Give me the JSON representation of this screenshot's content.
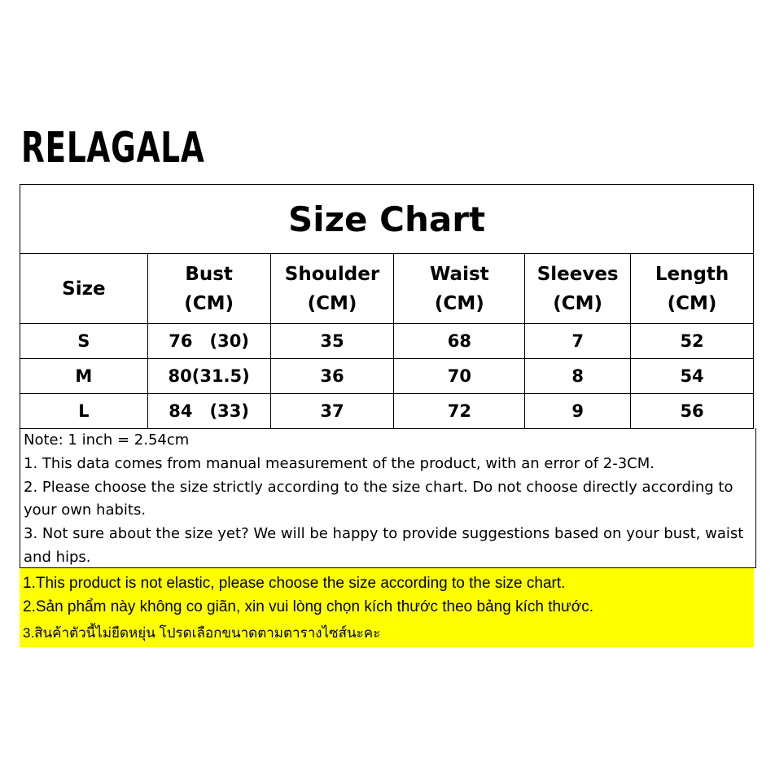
{
  "brand": "RELAGALA",
  "title": "Size Chart",
  "headers": [
    [
      "Size",
      ""
    ],
    [
      "Bust",
      "(CM)"
    ],
    [
      "Shoulder",
      "(CM)"
    ],
    [
      "Waist",
      "(CM)"
    ],
    [
      "Sleeves",
      "(CM)"
    ],
    [
      "Length",
      "(CM)"
    ]
  ],
  "rows": [
    [
      "S",
      "76 (30)",
      "35",
      "68",
      "7",
      "52"
    ],
    [
      "M",
      "80(31.5)",
      "36",
      "70",
      "8",
      "54"
    ],
    [
      "L",
      "84 (33)",
      "37",
      "72",
      "9",
      "56"
    ]
  ],
  "notes": [
    "Note: 1 inch = 2.54cm",
    "1. This data comes from manual measurement of the product, with an error of 2-3CM.",
    "2. Please choose the size strictly according to the size chart. Do not choose directly according to your own habits.",
    "3. Not sure about the size yet? We will be happy to provide suggestions based on your bust, waist and hips."
  ],
  "notice": [
    "1.This product is not elastic, please choose the size according to the size chart.",
    "2.Sản phẩm này không co giãn, xin vui lòng chọn kích thước theo bảng kích thước.",
    "3.สินค้าตัวนี้ไม่ยืดหยุ่น โปรดเลือกขนาดตามตารางไซส์นะคะ"
  ],
  "colors": {
    "highlight": "#ffff00"
  }
}
